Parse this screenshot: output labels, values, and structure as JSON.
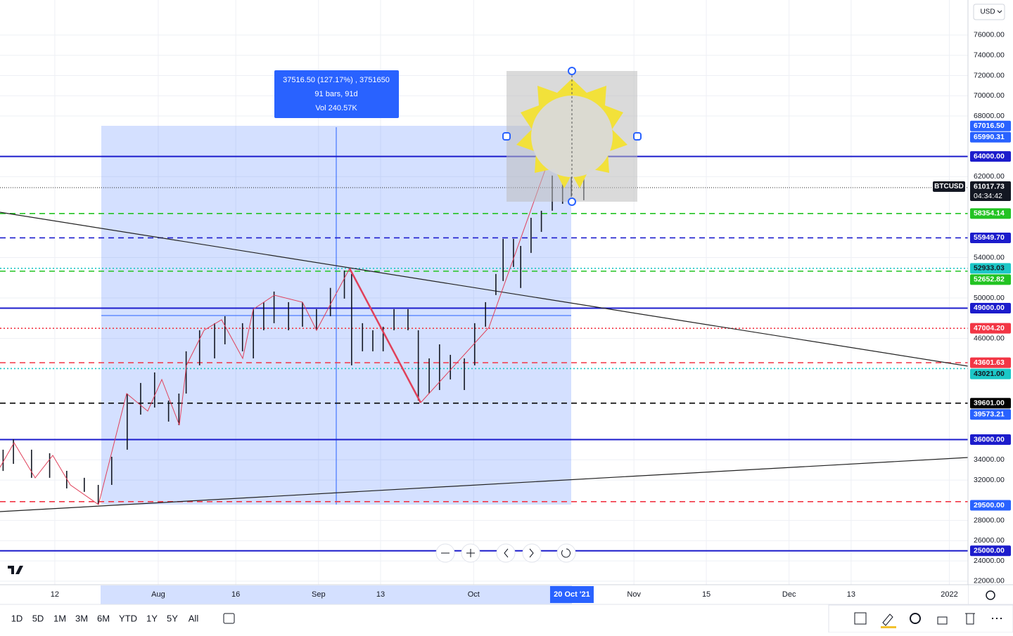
{
  "chart_data": {
    "type": "ohlc",
    "symbol": "BTCUSD",
    "currency": "USD",
    "countdown": "04:34:42",
    "x": [
      183,
      185,
      188.5,
      192,
      195.3,
      198.7,
      201.4,
      204,
      207,
      209.6,
      212.3,
      215,
      217,
      218.4,
      221,
      223.9,
      225.9,
      229.3,
      231.4,
      233.4,
      235.4,
      238.2,
      240.9,
      243.6,
      246.3,
      249,
      250.4,
      252.5,
      254.5,
      256.5,
      258.6,
      261.3,
      263.3,
      265.4,
      267.4,
      269.5,
      272.2,
      274.2,
      276.3,
      278.3,
      279.7,
      281.7,
      283.1,
      285.1,
      287.1,
      289.2,
      291.2,
      292.9,
      294,
      295.3
    ],
    "high": [
      35000,
      36040,
      35000,
      34650,
      32910,
      32220,
      31520,
      34300,
      40550,
      41600,
      42640,
      39860,
      40550,
      44730,
      46810,
      47510,
      48200,
      47510,
      48900,
      49590,
      50640,
      49590,
      49590,
      48900,
      51000,
      52720,
      52380,
      47510,
      46810,
      47160,
      48900,
      48900,
      46810,
      44030,
      45420,
      44380,
      44030,
      47510,
      49590,
      52380,
      55850,
      55850,
      55150,
      57930,
      58630,
      62110,
      64880,
      66970,
      66280,
      62800
    ],
    "low": [
      32900,
      33600,
      32220,
      32220,
      31170,
      30830,
      29580,
      31520,
      35000,
      38470,
      39170,
      37780,
      37430,
      40550,
      43340,
      44030,
      45420,
      44730,
      44030,
      46810,
      47510,
      46810,
      47160,
      46810,
      48200,
      49940,
      43340,
      44730,
      44730,
      44730,
      46810,
      46810,
      39860,
      40550,
      40900,
      41950,
      40900,
      43340,
      47160,
      50290,
      51680,
      53070,
      50990,
      54460,
      56540,
      58630,
      59320,
      60020,
      61410,
      59670
    ],
    "xlim": [
      182.4,
      369.6
    ],
    "xticks": [
      {
        "value": 193,
        "label": "12"
      },
      {
        "value": 213,
        "label": "Aug"
      },
      {
        "value": 228,
        "label": "16"
      },
      {
        "value": 244,
        "label": "Sep"
      },
      {
        "value": 256,
        "label": "13"
      },
      {
        "value": 274,
        "label": "Oct"
      },
      {
        "value": 305,
        "label": "Nov"
      },
      {
        "value": 319,
        "label": "15"
      },
      {
        "value": 335,
        "label": "Dec"
      },
      {
        "value": 347,
        "label": "13"
      },
      {
        "value": 366,
        "label": "2022"
      }
    ],
    "x_cursor": {
      "value": 293,
      "label": "20 Oct '21"
    },
    "ylim": [
      21650,
      79470
    ],
    "yticks": [
      {
        "value": 76000,
        "label": "76000.00"
      },
      {
        "value": 74000,
        "label": "74000.00"
      },
      {
        "value": 72000,
        "label": "72000.00"
      },
      {
        "value": 70000,
        "label": "70000.00"
      },
      {
        "value": 68000,
        "label": "68000.00"
      },
      {
        "value": 62000,
        "label": "62000.00"
      },
      {
        "value": 54000,
        "label": "54000.00"
      },
      {
        "value": 50000,
        "label": "50000.00"
      },
      {
        "value": 46000,
        "label": "46000.00"
      },
      {
        "value": 34000,
        "label": "34000.00"
      },
      {
        "value": 32000,
        "label": "32000.00"
      },
      {
        "value": 28000,
        "label": "28000.00"
      },
      {
        "value": 26000,
        "label": "26000.00"
      },
      {
        "value": 24000,
        "label": "24000.00"
      },
      {
        "value": 22000,
        "label": "22000.00"
      }
    ],
    "last_price": 61017.73,
    "levels": [
      {
        "price": 64000,
        "label": "64000.00",
        "color": "#1c1ccc",
        "style": "solid"
      },
      {
        "price": 58354.14,
        "label": "58354.14",
        "color": "#22c322",
        "style": "dashed"
      },
      {
        "price": 55949.7,
        "label": "55949.70",
        "color": "#1c1ccc",
        "style": "dashed"
      },
      {
        "price": 52933.03,
        "label": "52933.03",
        "color": "#1cc7c7",
        "style": "dotted"
      },
      {
        "price": 52652.82,
        "label": "52652.82",
        "color": "#22c322",
        "style": "dashed"
      },
      {
        "price": 49000,
        "label": "49000.00",
        "color": "#1c1ccc",
        "style": "solid"
      },
      {
        "price": 47004.2,
        "label": "47004.20",
        "color": "#f23645",
        "style": "dotted"
      },
      {
        "price": 43601.63,
        "label": "43601.63",
        "color": "#f23645",
        "style": "dashed"
      },
      {
        "price": 43021,
        "label": "43021.00",
        "color": "#1cc7c7",
        "style": "dotted"
      },
      {
        "price": 39601,
        "label": "39601.00",
        "color": "#000000",
        "style": "dashed"
      },
      {
        "price": 36000,
        "label": "36000.00",
        "color": "#1c1ccc",
        "style": "solid"
      },
      {
        "price": 29866,
        "color": "#f23645",
        "style": "dashed"
      },
      {
        "price": 25000,
        "label": "25000.00",
        "color": "#1c1ccc",
        "style": "solid"
      }
    ],
    "markers": [
      {
        "price": 67016.5,
        "label": "67016.50",
        "color": "#2962ff"
      },
      {
        "price": 65990.31,
        "label": "65990.31",
        "color": "#2962ff"
      },
      {
        "price": 39573.21,
        "label": "39573.21",
        "color": "#2962ff"
      },
      {
        "price": 29500,
        "label": "29500.00",
        "color": "#2962ff"
      }
    ],
    "measure": [
      "37516.50 (127.17%) , 3751650",
      "91 bars, 91d",
      "Vol 240.57K"
    ]
  },
  "toolbar": {
    "ranges": [
      "1D",
      "5D",
      "1M",
      "3M",
      "6M",
      "YTD",
      "1Y",
      "5Y",
      "All"
    ]
  }
}
